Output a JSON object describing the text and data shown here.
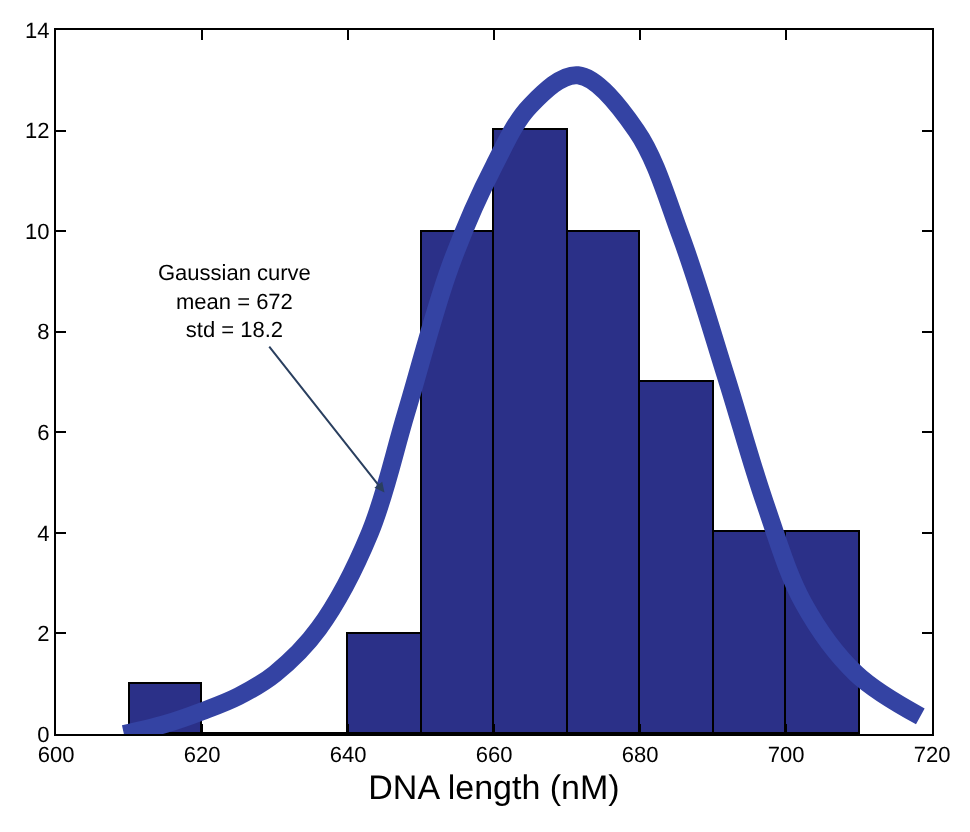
{
  "chart_data": {
    "type": "histogram",
    "xlabel": "DNA length (nM)",
    "bins": [
      610,
      620,
      630,
      640,
      650,
      660,
      670,
      680,
      690,
      700,
      710
    ],
    "values": [
      1,
      0,
      0,
      2,
      10,
      12,
      10,
      7,
      4,
      4
    ],
    "color": "#2b3088",
    "series": [
      {
        "type": "line",
        "color": "#3443a3",
        "x": [
          609.3,
          615,
          620,
          625,
          630,
          636,
          643,
          648,
          654,
          660,
          665,
          671.5,
          679.5,
          685.6,
          691.8,
          697.1,
          702.4,
          709.6,
          718.4
        ],
        "values": [
          0,
          0.2,
          0.45,
          0.75,
          1.2,
          2.1,
          4.0,
          6.4,
          9.3,
          11.3,
          12.5,
          13.1,
          12.0,
          9.9,
          7.1,
          4.6,
          2.6,
          1.2,
          0.35
        ]
      }
    ],
    "annotations": [
      {
        "text": "Gaussian curve\nmean = 672\nstd = 18.2",
        "x": 645,
        "y": 4.8
      }
    ],
    "xlim": [
      600,
      720
    ],
    "xticks": [
      600,
      620,
      640,
      660,
      680,
      700,
      720
    ],
    "ylim": [
      0,
      14
    ],
    "yticks": [
      0,
      2,
      4,
      6,
      8,
      10,
      12,
      14
    ]
  }
}
